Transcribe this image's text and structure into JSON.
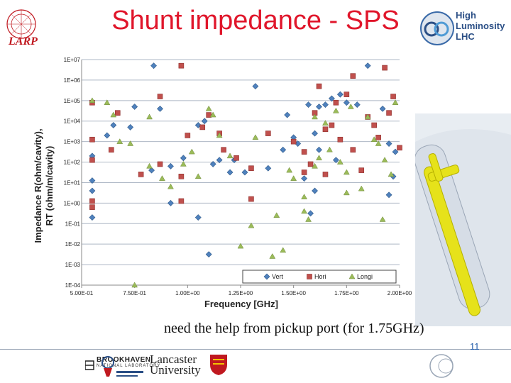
{
  "slide": {
    "title": "Shunt impedance - SPS",
    "note": "need the help from pickup port (for 1.75GHz)",
    "page_number": "11"
  },
  "logos": {
    "larp": "LARP",
    "high_lumi": [
      "High",
      "Luminosity",
      "LHC"
    ],
    "bnl": [
      "BROOKHAVEN",
      "NATIONAL LABORATORY"
    ],
    "lancaster": [
      "Lancaster",
      "University"
    ]
  },
  "colors": {
    "title": "#e0162b",
    "vert": "#4f81bd",
    "hori": "#c0504d",
    "longi": "#9bbb59",
    "grid": "#aeb7c5"
  },
  "chart_data": {
    "type": "scatter",
    "xlabel": "Frequency [GHz]",
    "ylabel_lines": [
      "Impedance R(ohm/cavity),",
      "RT (ohm/m/cavity)"
    ],
    "xlim": [
      0.5,
      2.0
    ],
    "ylim_log10": [
      -4,
      7
    ],
    "y_scale": "log",
    "x_tick_labels": [
      "5.00E-01",
      "7.50E-01",
      "1.00E+00",
      "1.25E+00",
      "1.50E+00",
      "1.75E+00",
      "2.00E+00"
    ],
    "x_ticks": [
      0.5,
      0.75,
      1.0,
      1.25,
      1.5,
      1.75,
      2.0
    ],
    "y_tick_labels": [
      "1E-04",
      "1E-03",
      "1E-02",
      "1E-01",
      "1E+00",
      "1E+01",
      "1E+02",
      "1E+03",
      "1E+04",
      "1E+05",
      "1E+06",
      "1E+07"
    ],
    "grid": "horizontal",
    "legend_position": "bottom-right",
    "series": [
      {
        "name": "Vert",
        "marker": "diamond",
        "points": [
          [
            0.84,
            6.7
          ],
          [
            0.62,
            3.3
          ],
          [
            0.55,
            2.3
          ],
          [
            0.55,
            1.1
          ],
          [
            0.55,
            0.6
          ],
          [
            0.55,
            -0.7
          ],
          [
            0.75,
            4.7
          ],
          [
            0.65,
            3.8
          ],
          [
            0.73,
            3.7
          ],
          [
            0.83,
            1.6
          ],
          [
            0.87,
            4.6
          ],
          [
            0.92,
            1.8
          ],
          [
            0.92,
            0.0
          ],
          [
            0.98,
            2.2
          ],
          [
            1.05,
            3.8
          ],
          [
            1.08,
            4.0
          ],
          [
            1.12,
            1.9
          ],
          [
            1.15,
            2.1
          ],
          [
            1.2,
            1.5
          ],
          [
            1.27,
            1.5
          ],
          [
            1.05,
            -0.7
          ],
          [
            1.1,
            -2.5
          ],
          [
            1.22,
            2.1
          ],
          [
            1.32,
            5.7
          ],
          [
            1.38,
            1.7
          ],
          [
            1.45,
            2.6
          ],
          [
            1.47,
            4.3
          ],
          [
            1.5,
            3.2
          ],
          [
            1.52,
            2.9
          ],
          [
            1.57,
            4.8
          ],
          [
            1.62,
            4.7
          ],
          [
            1.65,
            4.8
          ],
          [
            1.68,
            5.1
          ],
          [
            1.72,
            5.3
          ],
          [
            1.75,
            4.9
          ],
          [
            1.6,
            3.4
          ],
          [
            1.62,
            2.6
          ],
          [
            1.58,
            -0.5
          ],
          [
            1.7,
            2.1
          ],
          [
            1.8,
            4.8
          ],
          [
            1.85,
            6.7
          ],
          [
            1.92,
            4.6
          ],
          [
            1.95,
            2.9
          ],
          [
            1.98,
            2.5
          ],
          [
            1.97,
            1.3
          ],
          [
            1.55,
            1.2
          ],
          [
            1.6,
            0.6
          ],
          [
            1.95,
            0.4
          ]
        ]
      },
      {
        "name": "Hori",
        "marker": "square",
        "points": [
          [
            0.97,
            6.7
          ],
          [
            0.87,
            5.2
          ],
          [
            0.55,
            4.9
          ],
          [
            0.67,
            4.4
          ],
          [
            0.64,
            2.6
          ],
          [
            0.55,
            3.1
          ],
          [
            0.55,
            2.1
          ],
          [
            0.55,
            0.1
          ],
          [
            0.55,
            -0.2
          ],
          [
            0.78,
            1.4
          ],
          [
            0.87,
            1.9
          ],
          [
            0.97,
            1.3
          ],
          [
            0.97,
            0.1
          ],
          [
            1.0,
            3.3
          ],
          [
            1.07,
            3.7
          ],
          [
            1.1,
            4.3
          ],
          [
            1.15,
            3.4
          ],
          [
            1.17,
            2.6
          ],
          [
            1.23,
            2.2
          ],
          [
            1.3,
            1.7
          ],
          [
            1.3,
            0.2
          ],
          [
            1.38,
            3.4
          ],
          [
            1.5,
            3.0
          ],
          [
            1.55,
            1.5
          ],
          [
            1.58,
            1.9
          ],
          [
            1.6,
            4.4
          ],
          [
            1.65,
            3.6
          ],
          [
            1.68,
            3.8
          ],
          [
            1.7,
            4.9
          ],
          [
            1.72,
            3.1
          ],
          [
            1.75,
            5.3
          ],
          [
            1.78,
            2.6
          ],
          [
            1.82,
            1.6
          ],
          [
            1.78,
            6.2
          ],
          [
            1.85,
            4.2
          ],
          [
            1.88,
            3.8
          ],
          [
            1.9,
            3.2
          ],
          [
            1.95,
            4.4
          ],
          [
            1.97,
            5.2
          ],
          [
            2.0,
            2.7
          ],
          [
            1.93,
            6.6
          ],
          [
            1.65,
            1.4
          ],
          [
            1.62,
            5.7
          ],
          [
            1.55,
            2.5
          ]
        ]
      },
      {
        "name": "Longi",
        "marker": "triangle",
        "points": [
          [
            0.55,
            5.0
          ],
          [
            0.62,
            4.9
          ],
          [
            0.65,
            4.3
          ],
          [
            0.68,
            3.0
          ],
          [
            0.73,
            2.9
          ],
          [
            0.82,
            4.2
          ],
          [
            0.82,
            1.8
          ],
          [
            0.88,
            1.2
          ],
          [
            0.92,
            0.8
          ],
          [
            1.02,
            2.5
          ],
          [
            1.05,
            1.3
          ],
          [
            1.1,
            4.6
          ],
          [
            1.12,
            4.3
          ],
          [
            1.15,
            3.3
          ],
          [
            1.2,
            2.3
          ],
          [
            1.25,
            -2.1
          ],
          [
            1.3,
            -1.1
          ],
          [
            1.32,
            3.2
          ],
          [
            1.42,
            -0.6
          ],
          [
            1.45,
            -2.3
          ],
          [
            1.48,
            1.6
          ],
          [
            1.5,
            1.2
          ],
          [
            1.55,
            0.3
          ],
          [
            1.57,
            -0.8
          ],
          [
            1.6,
            4.2
          ],
          [
            1.62,
            2.2
          ],
          [
            1.65,
            3.9
          ],
          [
            1.67,
            2.6
          ],
          [
            1.7,
            4.5
          ],
          [
            1.72,
            2.0
          ],
          [
            1.75,
            1.5
          ],
          [
            1.77,
            4.7
          ],
          [
            1.82,
            0.7
          ],
          [
            1.85,
            4.2
          ],
          [
            1.88,
            3.1
          ],
          [
            1.9,
            2.9
          ],
          [
            1.93,
            2.1
          ],
          [
            1.96,
            1.4
          ],
          [
            1.98,
            4.9
          ],
          [
            1.92,
            -0.8
          ],
          [
            1.55,
            -0.4
          ],
          [
            0.75,
            -4.0
          ],
          [
            0.98,
            1.9
          ],
          [
            1.4,
            -2.6
          ],
          [
            1.6,
            1.8
          ],
          [
            1.75,
            0.5
          ]
        ]
      }
    ]
  }
}
